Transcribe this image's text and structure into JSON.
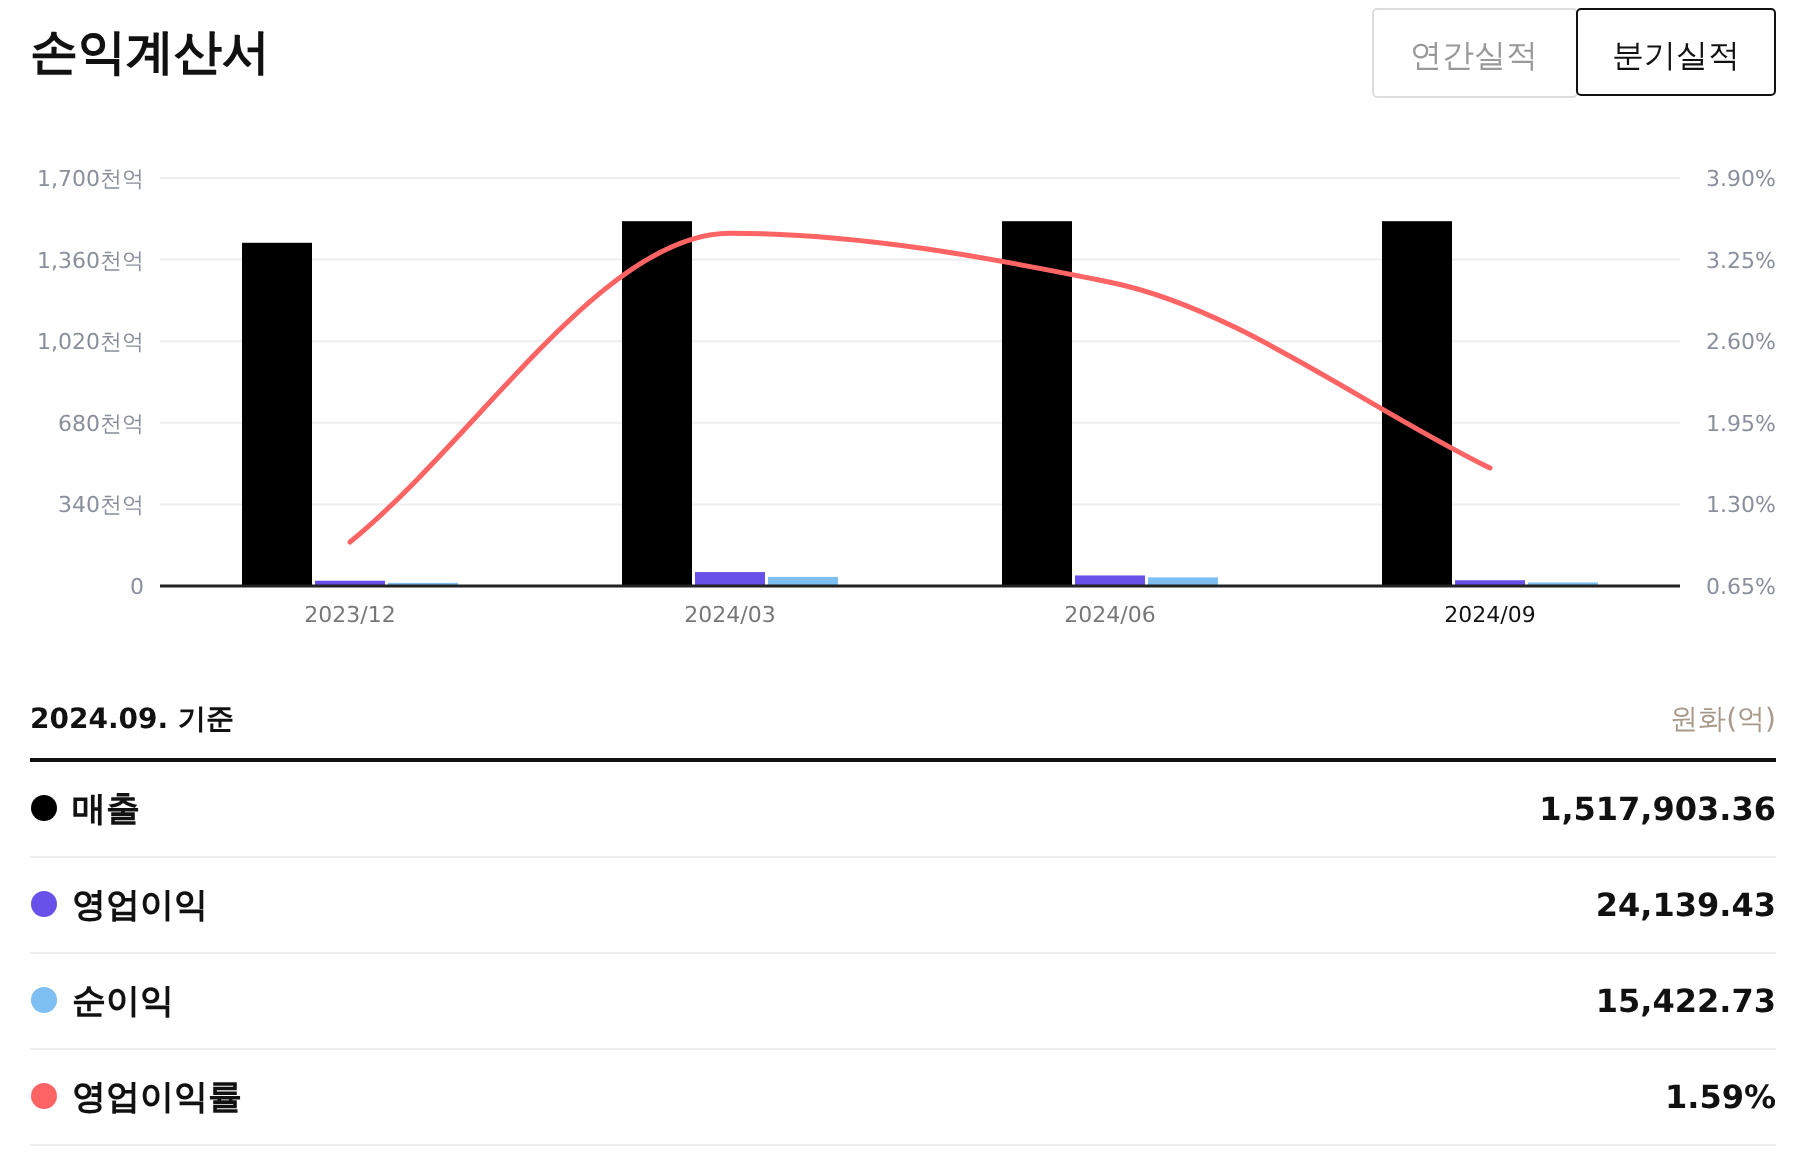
{
  "chart_data": {
    "type": "bar",
    "title": "손익계산서",
    "categories": [
      "2023/12",
      "2024/03",
      "2024/06",
      "2024/09"
    ],
    "series": [
      {
        "name": "매출",
        "color": "#000000",
        "values": [
          1430,
          1520,
          1520,
          1520
        ]
      },
      {
        "name": "영업이익",
        "color": "#6851e8",
        "values": [
          22,
          58,
          44,
          24
        ]
      },
      {
        "name": "순이익",
        "color": "#7dbff0",
        "values": [
          13,
          38,
          36,
          15
        ]
      },
      {
        "name": "영업이익률",
        "type": "line",
        "axis": "y2",
        "color": "#ff6464",
        "values": [
          1.0,
          3.46,
          3.07,
          1.59
        ]
      }
    ],
    "ylim": [
      0,
      1700
    ],
    "yticks": [
      {
        "value": 0,
        "label": "0"
      },
      {
        "value": 340,
        "label": "340천억"
      },
      {
        "value": 680,
        "label": "680천억"
      },
      {
        "value": 1020,
        "label": "1,020천억"
      },
      {
        "value": 1360,
        "label": "1,360천억"
      },
      {
        "value": 1700,
        "label": "1,700천억"
      }
    ],
    "y2lim": [
      0.65,
      3.9
    ],
    "y2ticks": [
      {
        "value": 0.65,
        "label": "0.65%"
      },
      {
        "value": 1.3,
        "label": "1.30%"
      },
      {
        "value": 1.95,
        "label": "1.95%"
      },
      {
        "value": 2.6,
        "label": "2.60%"
      },
      {
        "value": 3.25,
        "label": "3.25%"
      },
      {
        "value": 3.9,
        "label": "3.90%"
      }
    ],
    "grid": "y",
    "legend": "bottom",
    "annotations": [
      "연간실적",
      "분기실적",
      "2024.09. 기준",
      "원화(억)",
      "1,517,903.36",
      "24,139.43",
      "15,422.73",
      "1.59%"
    ]
  }
}
